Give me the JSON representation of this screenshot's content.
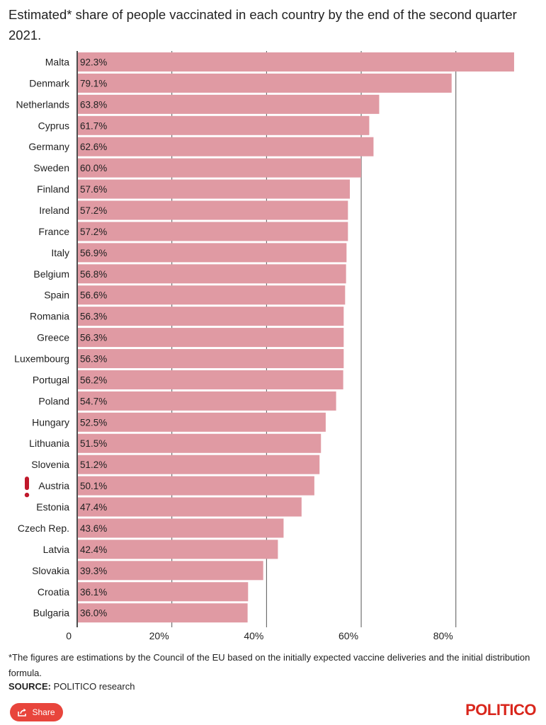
{
  "chart_data": {
    "type": "bar",
    "orientation": "horizontal",
    "title": "Estimated* share of people vaccinated in each country by the end of the second quarter 2021.",
    "categories": [
      "Malta",
      "Denmark",
      "Netherlands",
      "Cyprus",
      "Germany",
      "Sweden",
      "Finland",
      "Ireland",
      "France",
      "Italy",
      "Belgium",
      "Spain",
      "Romania",
      "Greece",
      "Luxembourg",
      "Portugal",
      "Poland",
      "Hungary",
      "Lithuania",
      "Slovenia",
      "Austria",
      "Estonia",
      "Czech Rep.",
      "Latvia",
      "Slovakia",
      "Croatia",
      "Bulgaria"
    ],
    "values": [
      92.3,
      79.1,
      63.8,
      61.7,
      62.6,
      60.0,
      57.6,
      57.2,
      57.2,
      56.9,
      56.8,
      56.6,
      56.3,
      56.3,
      56.3,
      56.2,
      54.7,
      52.5,
      51.5,
      51.2,
      50.1,
      47.4,
      43.6,
      42.4,
      39.3,
      36.1,
      36.0
    ],
    "value_labels": [
      "92.3%",
      "79.1%",
      "63.8%",
      "61.7%",
      "62.6%",
      "60.0%",
      "57.6%",
      "57.2%",
      "57.2%",
      "56.9%",
      "56.8%",
      "56.6%",
      "56.3%",
      "56.3%",
      "56.3%",
      "56.2%",
      "54.7%",
      "52.5%",
      "51.5%",
      "51.2%",
      "50.1%",
      "47.4%",
      "43.6%",
      "42.4%",
      "39.3%",
      "36.1%",
      "36.0%"
    ],
    "highlight_category": "Austria",
    "xlim": [
      0,
      95
    ],
    "x_ticks": [
      0,
      20,
      40,
      60,
      80
    ],
    "x_tick_labels": [
      "0",
      "20%",
      "40%",
      "60%",
      "80%"
    ],
    "grid": true,
    "bar_color": "#e09aa3",
    "highlight_marker_color": "#c0182b"
  },
  "footnote": "*The figures are estimations by the Council of the EU based on the initially expected vaccine deliveries and the initial distribution formula.",
  "source": {
    "label": "SOURCE:",
    "text": " POLITICO research"
  },
  "share_button": {
    "label": "Share",
    "icon": "share-icon"
  },
  "brand": "POLITICO",
  "colors": {
    "accent": "#e8453c",
    "brand": "#d9261c"
  }
}
